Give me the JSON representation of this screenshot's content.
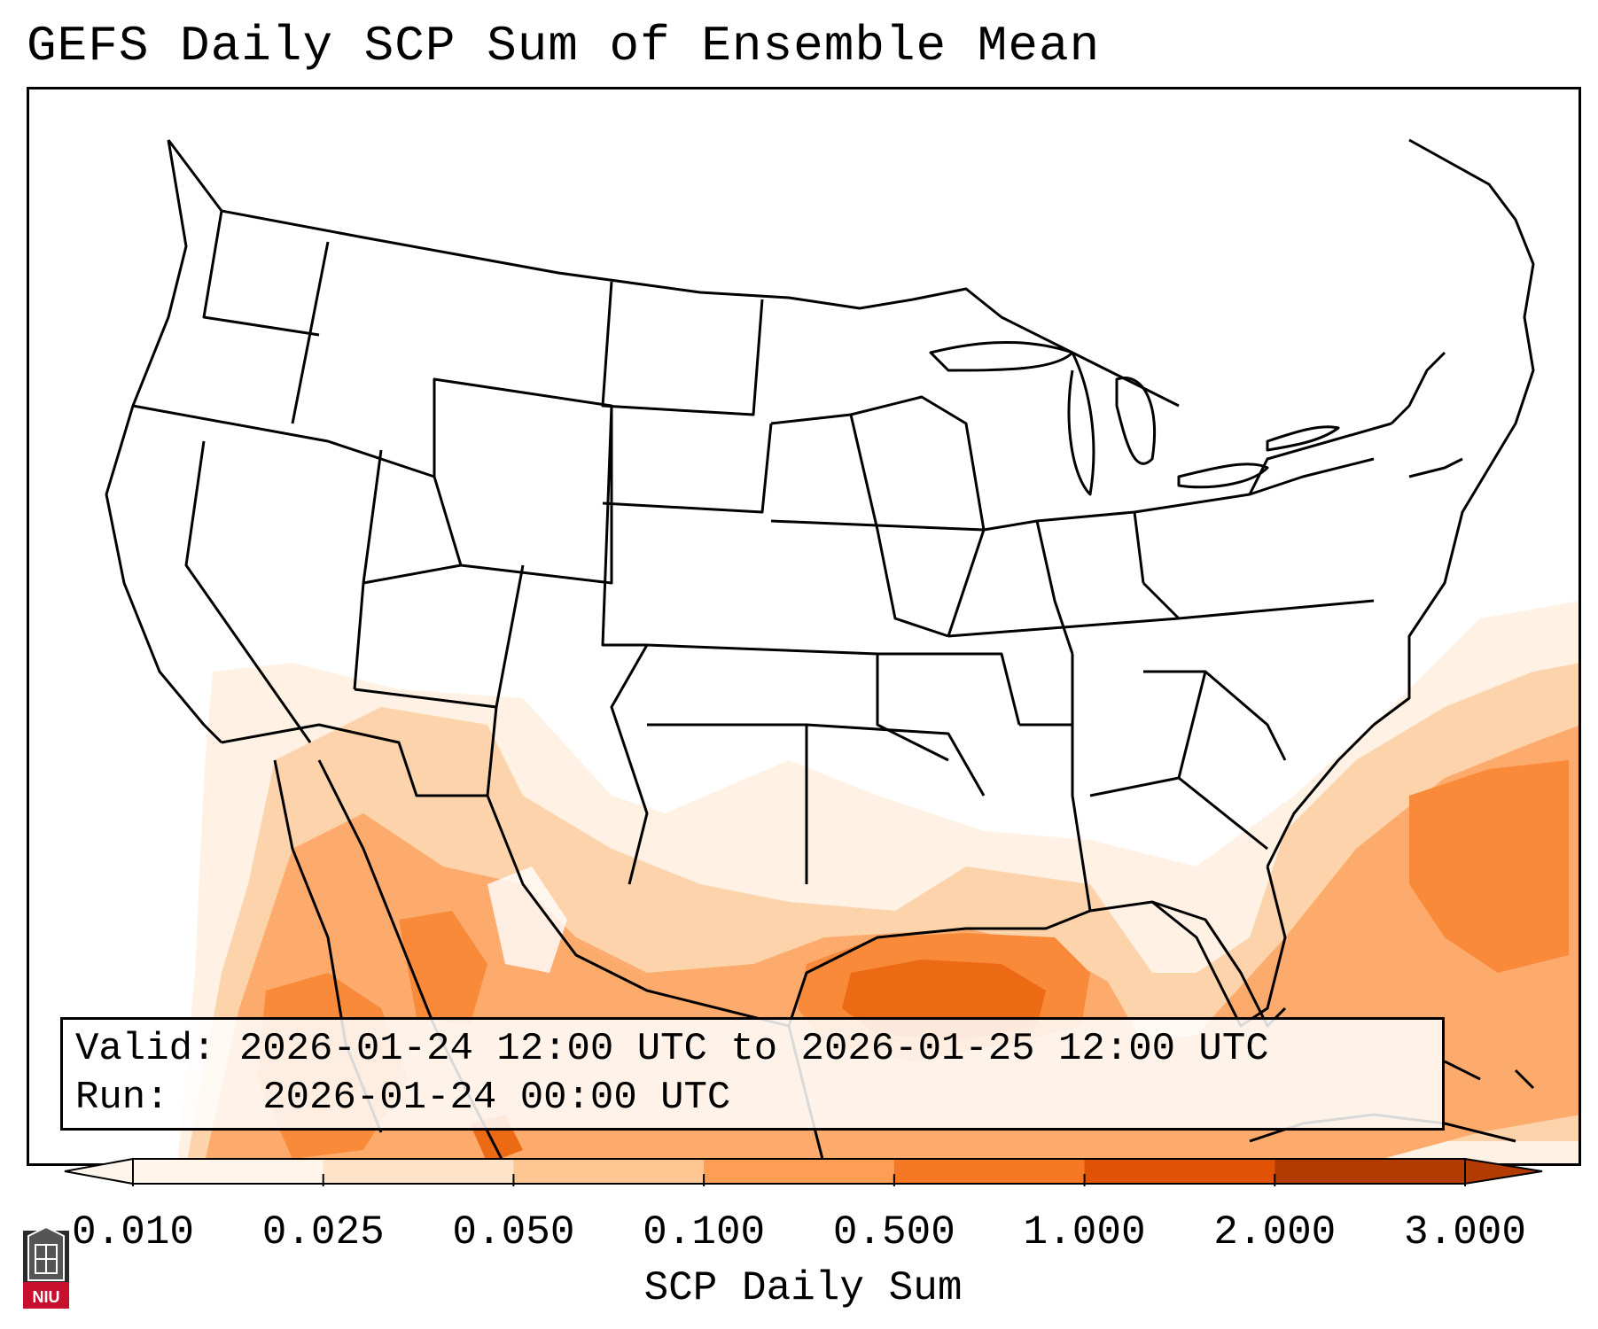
{
  "title": "GEFS Daily SCP Sum of Ensemble Mean",
  "info": {
    "valid_label": "Valid:",
    "valid_value": "2026-01-24 12:00 UTC to 2026-01-25 12:00 UTC",
    "run_label": "Run:",
    "run_value": "2026-01-24 00:00 UTC"
  },
  "colorbar": {
    "label": "SCP Daily Sum",
    "ticks": [
      "0.010",
      "0.025",
      "0.050",
      "0.100",
      "0.500",
      "1.000",
      "2.000",
      "3.000"
    ],
    "colors": [
      "#fff5eb",
      "#fee3c8",
      "#fdc692",
      "#fd9e54",
      "#f67824",
      "#e05206",
      "#b23b03"
    ],
    "extend": "both"
  },
  "logo": {
    "text": "NIU",
    "icon": "niu-logo-icon"
  },
  "map_layers": {
    "land_boundaries": "state-borders-icon",
    "shading": "scp-shading"
  }
}
